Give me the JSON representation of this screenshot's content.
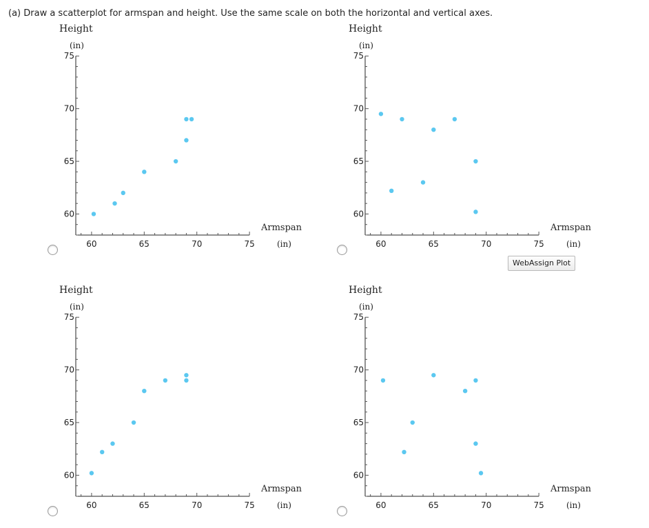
{
  "question": {
    "text": "(a) Draw a scatterplot for armspan and height. Use the same scale on both the horizontal and vertical axes."
  },
  "webassign_button": {
    "label": "WebAssign Plot"
  },
  "point_color": "#5bc8f0",
  "chart_data": [
    {
      "type": "scatter",
      "ylabel": "Height",
      "yunit": "(in)",
      "xlabel": "Armspan",
      "xunit": "(in)",
      "xlim": [
        58.5,
        75
      ],
      "ylim": [
        58,
        75
      ],
      "xticks": [
        60,
        65,
        70,
        75
      ],
      "yticks": [
        60,
        65,
        70,
        75
      ],
      "points": [
        [
          60.2,
          60
        ],
        [
          62.2,
          61
        ],
        [
          63,
          62
        ],
        [
          65,
          64
        ],
        [
          68,
          65
        ],
        [
          69,
          67
        ],
        [
          69,
          69
        ],
        [
          69.5,
          69
        ]
      ]
    },
    {
      "type": "scatter",
      "ylabel": "Height",
      "yunit": "(in)",
      "xlabel": "Armspan",
      "xunit": "(in)",
      "xlim": [
        58.5,
        75
      ],
      "ylim": [
        58,
        75
      ],
      "xticks": [
        60,
        65,
        70,
        75
      ],
      "yticks": [
        60,
        65,
        70,
        75
      ],
      "points": [
        [
          60,
          69.5
        ],
        [
          62,
          69
        ],
        [
          67,
          69
        ],
        [
          65,
          68
        ],
        [
          69,
          65
        ],
        [
          64,
          63
        ],
        [
          61,
          62.2
        ],
        [
          69,
          60.2
        ]
      ]
    },
    {
      "type": "scatter",
      "ylabel": "Height",
      "yunit": "(in)",
      "xlabel": "Armspan",
      "xunit": "(in)",
      "xlim": [
        58.5,
        75
      ],
      "ylim": [
        58,
        75
      ],
      "xticks": [
        60,
        65,
        70,
        75
      ],
      "yticks": [
        60,
        65,
        70,
        75
      ],
      "points": [
        [
          60,
          60.2
        ],
        [
          61,
          62.2
        ],
        [
          62,
          63
        ],
        [
          64,
          65
        ],
        [
          65,
          68
        ],
        [
          67,
          69
        ],
        [
          69,
          69
        ],
        [
          69,
          69.5
        ]
      ]
    },
    {
      "type": "scatter",
      "ylabel": "Height",
      "yunit": "(in)",
      "xlabel": "Armspan",
      "xunit": "(in)",
      "xlim": [
        58.5,
        75
      ],
      "ylim": [
        58,
        75
      ],
      "xticks": [
        60,
        65,
        70,
        75
      ],
      "yticks": [
        60,
        65,
        70,
        75
      ],
      "points": [
        [
          60.2,
          69
        ],
        [
          65,
          69.5
        ],
        [
          69,
          69
        ],
        [
          68,
          68
        ],
        [
          63,
          65
        ],
        [
          62.2,
          62.2
        ],
        [
          69,
          63
        ],
        [
          69.5,
          60.2
        ]
      ]
    }
  ]
}
